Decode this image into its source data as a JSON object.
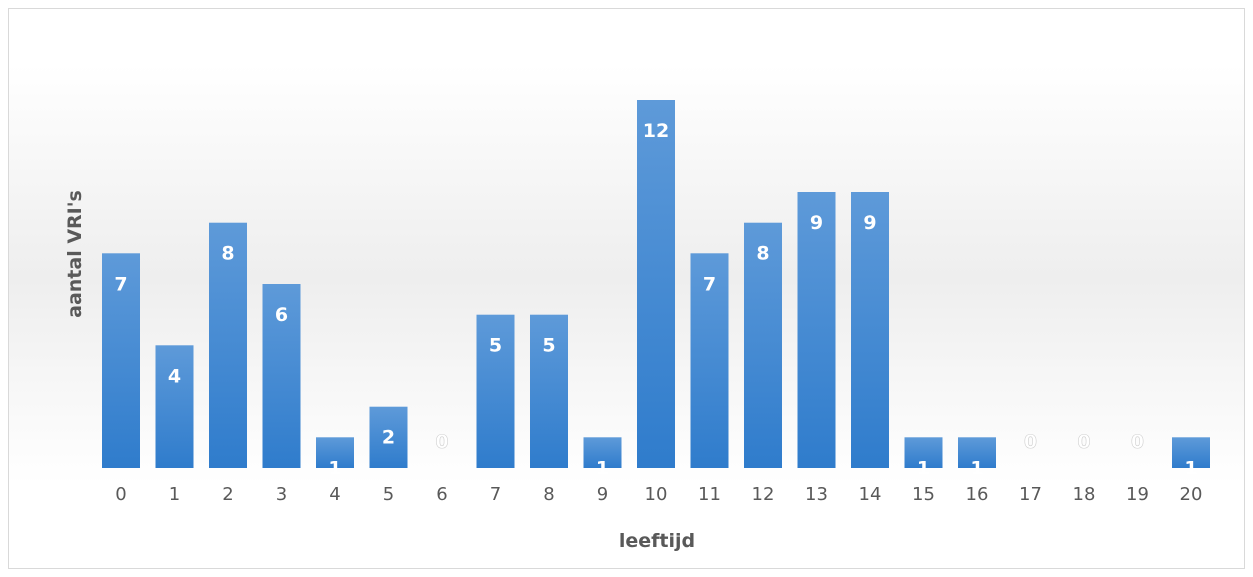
{
  "chart_data": {
    "type": "bar",
    "title": "",
    "xlabel": "leeftijd",
    "ylabel": "aantal VRI's",
    "categories": [
      "0",
      "1",
      "2",
      "3",
      "4",
      "5",
      "6",
      "7",
      "8",
      "9",
      "10",
      "11",
      "12",
      "13",
      "14",
      "15",
      "16",
      "17",
      "18",
      "19",
      "20"
    ],
    "values": [
      7,
      4,
      8,
      6,
      1,
      2,
      0,
      5,
      5,
      1,
      12,
      7,
      8,
      9,
      9,
      1,
      1,
      0,
      0,
      0,
      1
    ],
    "ylim": [
      0,
      12
    ],
    "grid": false,
    "legend": "none",
    "bar_color": "#3d85cf",
    "data_label_color": "#ffffff"
  }
}
